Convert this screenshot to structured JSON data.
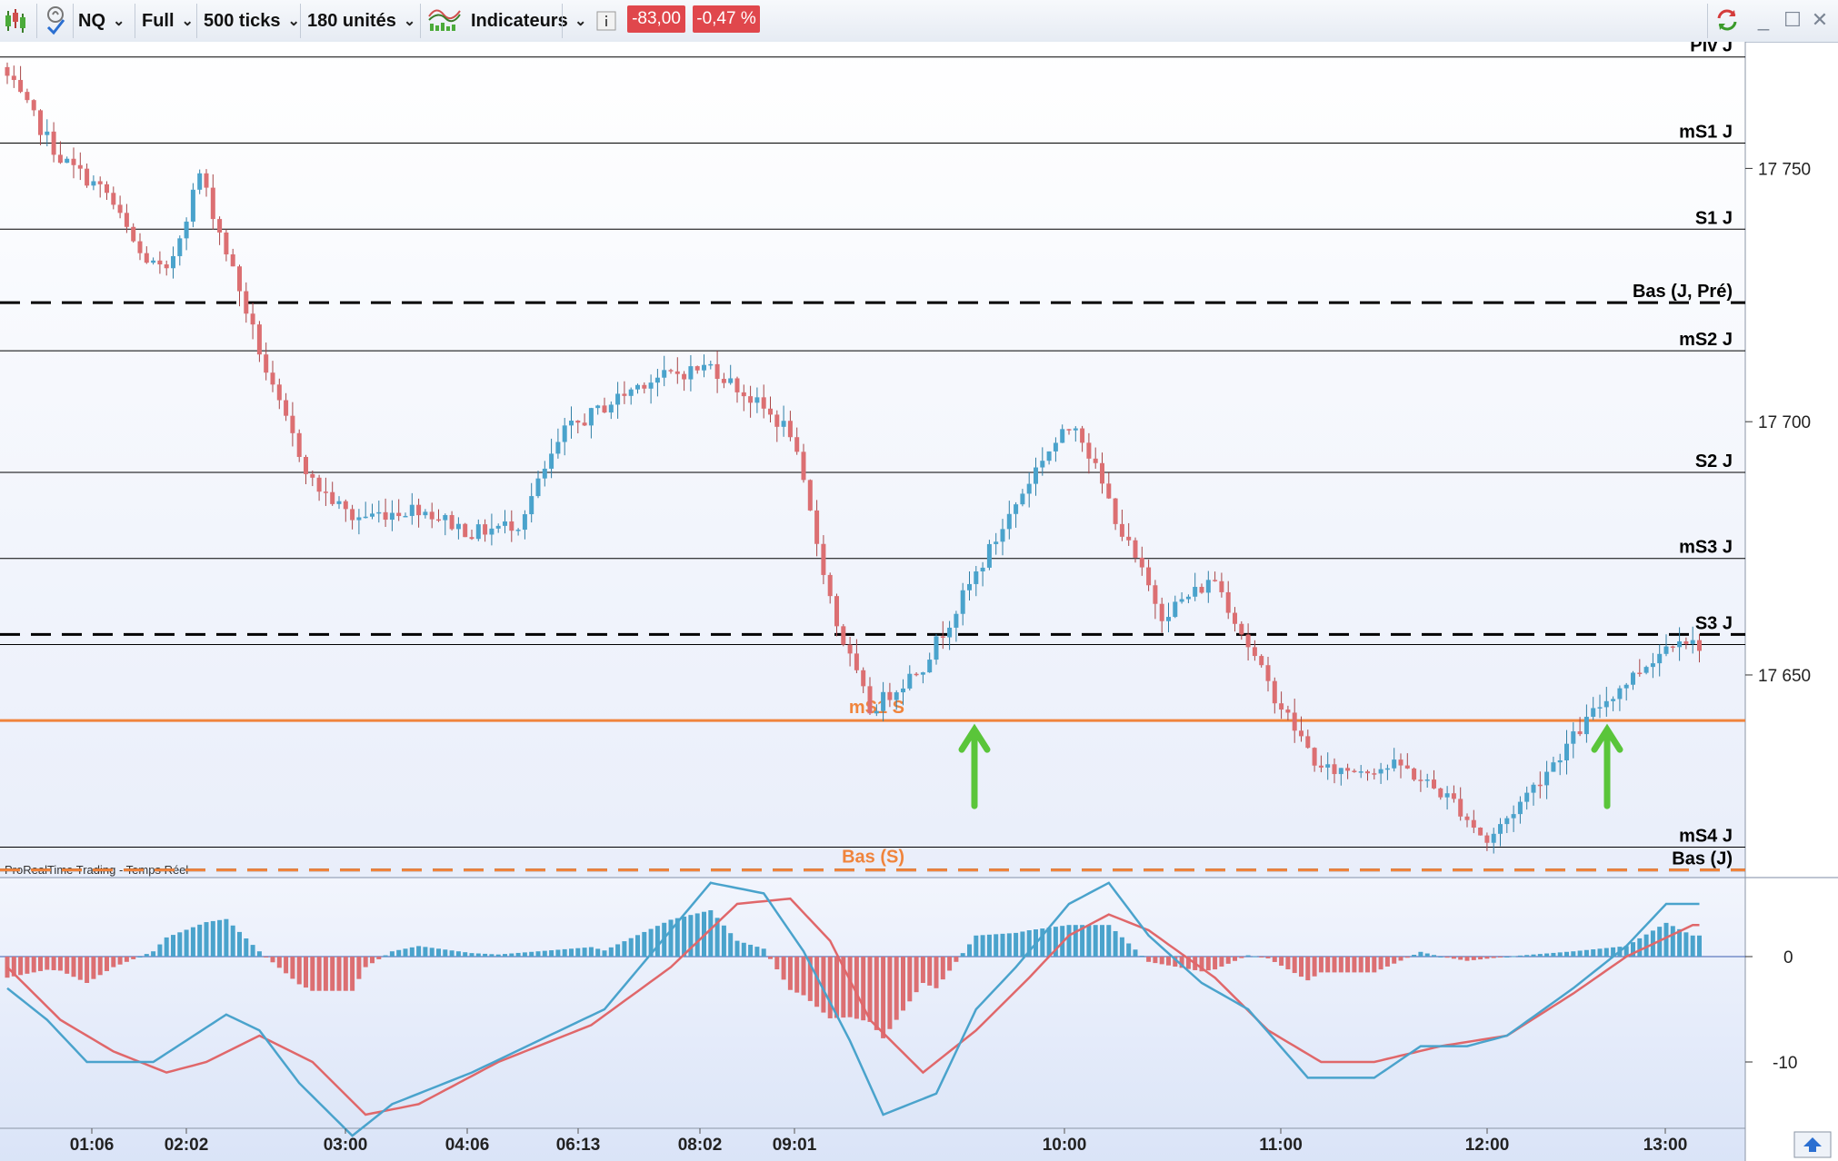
{
  "toolbar": {
    "instrument": "NQ",
    "view": "Full",
    "ticks": "500 ticks",
    "units": "180 unités",
    "indicators": "Indicateurs",
    "change_points": "-83,00",
    "change_percent": "-0,47 %"
  },
  "colors": {
    "up": "#4aa3cc",
    "down": "#dc6f72",
    "orange": "#f0843c",
    "macd_line": "#4aa3cc",
    "signal_line": "#e0676a",
    "arrow": "#5ac53a"
  },
  "icons": [
    "candlestick-icon",
    "alarm-icon",
    "indicators-icon",
    "info-icon",
    "refresh-icon",
    "minimize-icon",
    "maximize-icon",
    "close-icon",
    "scroll-up-icon"
  ],
  "watermark": "ProRealTime Trading - Temps Réel",
  "chart_data": {
    "type": "candlestick",
    "price_axis": {
      "ticks": [
        17750,
        17700,
        17650
      ],
      "tick_labels": [
        "17 750",
        "17 700",
        "17 650"
      ],
      "range": [
        17610,
        17775
      ]
    },
    "time_axis": {
      "labels": [
        "01:06",
        "02:02",
        "03:00",
        "04:06",
        "06:13",
        "08:02",
        "09:01",
        "10:00",
        "11:00",
        "12:00",
        "13:00"
      ]
    },
    "levels": [
      {
        "name": "Piv J",
        "value": 17772,
        "style": "solid",
        "color": "#000000",
        "side": "right"
      },
      {
        "name": "mS1 J",
        "value": 17755,
        "style": "solid",
        "color": "#000000",
        "side": "right"
      },
      {
        "name": "S1 J",
        "value": 17738,
        "style": "solid",
        "color": "#000000",
        "side": "right"
      },
      {
        "name": "Bas (J, Pré)",
        "value": 17723.5,
        "style": "dashed",
        "color": "#000000",
        "side": "right"
      },
      {
        "name": "mS2 J",
        "value": 17714,
        "style": "solid",
        "color": "#000000",
        "side": "right"
      },
      {
        "name": "S2 J",
        "value": 17690,
        "style": "solid",
        "color": "#000000",
        "side": "right"
      },
      {
        "name": "mS3 J",
        "value": 17673,
        "style": "solid",
        "color": "#000000",
        "side": "right"
      },
      {
        "name": "S3 J",
        "value": 17658,
        "style": "dashed",
        "color": "#000000",
        "side": "right"
      },
      {
        "name": "",
        "value": 17656,
        "style": "solid",
        "color": "#000000",
        "side": "right"
      },
      {
        "name": "mS1 S",
        "value": 17641,
        "style": "solid",
        "color": "#f0843c",
        "side": "mid"
      },
      {
        "name": "mS4 J",
        "value": 17616,
        "style": "solid",
        "color": "#000000",
        "side": "right"
      },
      {
        "name": "Bas (J)",
        "value": 17611.5,
        "style": "dashed",
        "color": "#000000",
        "side": "right"
      },
      {
        "name": "Bas (S)",
        "value": 17611.5,
        "style": "dashed",
        "color": "#f0843c",
        "side": "mid"
      }
    ],
    "annotations": [
      {
        "type": "arrow-up",
        "near_time": "09:45",
        "price": 17641
      },
      {
        "type": "arrow-up",
        "near_time": "12:45",
        "price": 17641
      }
    ],
    "price_waypoints": [
      [
        0,
        17768
      ],
      [
        8,
        17752
      ],
      [
        15,
        17745
      ],
      [
        20,
        17733
      ],
      [
        24,
        17729
      ],
      [
        29,
        17749
      ],
      [
        35,
        17726
      ],
      [
        40,
        17706
      ],
      [
        46,
        17688
      ],
      [
        52,
        17681
      ],
      [
        62,
        17683
      ],
      [
        70,
        17678
      ],
      [
        77,
        17680
      ],
      [
        84,
        17698
      ],
      [
        96,
        17708
      ],
      [
        106,
        17711
      ],
      [
        118,
        17698
      ],
      [
        125,
        17660
      ],
      [
        130,
        17643
      ],
      [
        138,
        17652
      ],
      [
        143,
        17663
      ],
      [
        156,
        17693
      ],
      [
        161,
        17700
      ],
      [
        168,
        17678
      ],
      [
        174,
        17662
      ],
      [
        182,
        17669
      ],
      [
        190,
        17648
      ],
      [
        198,
        17631
      ],
      [
        210,
        17632
      ],
      [
        218,
        17625
      ],
      [
        223,
        17617
      ],
      [
        230,
        17628
      ],
      [
        240,
        17644
      ],
      [
        252,
        17658
      ],
      [
        254,
        17656
      ]
    ],
    "oscillator": {
      "type": "macd",
      "ticks": [
        0,
        -10
      ],
      "tick_labels": [
        "0",
        "-10"
      ],
      "range": [
        -17.5,
        7.5
      ],
      "macd_waypoints": [
        [
          0,
          -3
        ],
        [
          6,
          -6
        ],
        [
          12,
          -10
        ],
        [
          22,
          -10
        ],
        [
          33,
          -5.5
        ],
        [
          38,
          -7
        ],
        [
          44,
          -12
        ],
        [
          52,
          -17
        ],
        [
          58,
          -14
        ],
        [
          70,
          -11
        ],
        [
          80,
          -8
        ],
        [
          90,
          -5
        ],
        [
          98,
          1
        ],
        [
          106,
          7
        ],
        [
          114,
          6
        ],
        [
          120,
          0.5
        ],
        [
          127,
          -8
        ],
        [
          132,
          -15
        ],
        [
          140,
          -13
        ],
        [
          146,
          -5
        ],
        [
          152,
          -1
        ],
        [
          160,
          5
        ],
        [
          166,
          7
        ],
        [
          172,
          2
        ],
        [
          180,
          -2.5
        ],
        [
          187,
          -5
        ],
        [
          196,
          -11.5
        ],
        [
          206,
          -11.5
        ],
        [
          213,
          -8.5
        ],
        [
          220,
          -8.5
        ],
        [
          226,
          -7.5
        ],
        [
          236,
          -3
        ],
        [
          244,
          1
        ],
        [
          250,
          5
        ],
        [
          254,
          5
        ]
      ],
      "signal_waypoints": [
        [
          0,
          -1
        ],
        [
          8,
          -6
        ],
        [
          16,
          -9
        ],
        [
          24,
          -11
        ],
        [
          30,
          -10
        ],
        [
          38,
          -7.5
        ],
        [
          46,
          -10
        ],
        [
          54,
          -15
        ],
        [
          62,
          -14
        ],
        [
          74,
          -10
        ],
        [
          88,
          -6.5
        ],
        [
          100,
          -1
        ],
        [
          110,
          5
        ],
        [
          118,
          5.5
        ],
        [
          124,
          1.5
        ],
        [
          130,
          -6
        ],
        [
          138,
          -11
        ],
        [
          146,
          -7
        ],
        [
          154,
          -2
        ],
        [
          160,
          2
        ],
        [
          166,
          4
        ],
        [
          172,
          2.5
        ],
        [
          182,
          -2
        ],
        [
          190,
          -7
        ],
        [
          198,
          -10
        ],
        [
          206,
          -10
        ],
        [
          216,
          -8.5
        ],
        [
          226,
          -7.5
        ],
        [
          236,
          -3.5
        ],
        [
          244,
          0
        ],
        [
          254,
          3
        ]
      ]
    }
  }
}
